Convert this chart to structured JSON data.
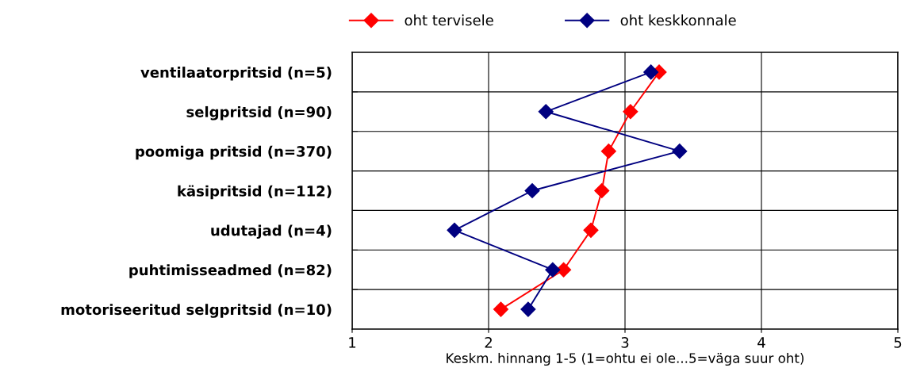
{
  "chart_data": {
    "type": "line",
    "orientation": "horizontal",
    "xlabel": "Keskm. hinnang 1-5 (1=ohtu ei ole...5=väga suur oht)",
    "categories": [
      "ventilaatorpritsid (n=5)",
      "selgpritsid (n=90)",
      "poomiga pritsid (n=370)",
      "käsipritsid (n=112)",
      "udutajad (n=4)",
      "puhtimisseadmed (n=82)",
      "motoriseeritud selgpritsid (n=10)"
    ],
    "series": [
      {
        "name": "oht tervisele",
        "color": "#ff0000",
        "values": [
          3.25,
          3.04,
          2.88,
          2.83,
          2.75,
          2.55,
          2.09
        ]
      },
      {
        "name": "oht keskkonnale",
        "color": "#000080",
        "values": [
          3.19,
          2.42,
          3.4,
          2.32,
          1.75,
          2.47,
          2.29
        ]
      }
    ],
    "xlim": [
      1,
      5
    ],
    "xticks": [
      1,
      2,
      3,
      4,
      5
    ],
    "grid": true,
    "legend": "top",
    "marker": "diamond",
    "line_style": "solid"
  }
}
